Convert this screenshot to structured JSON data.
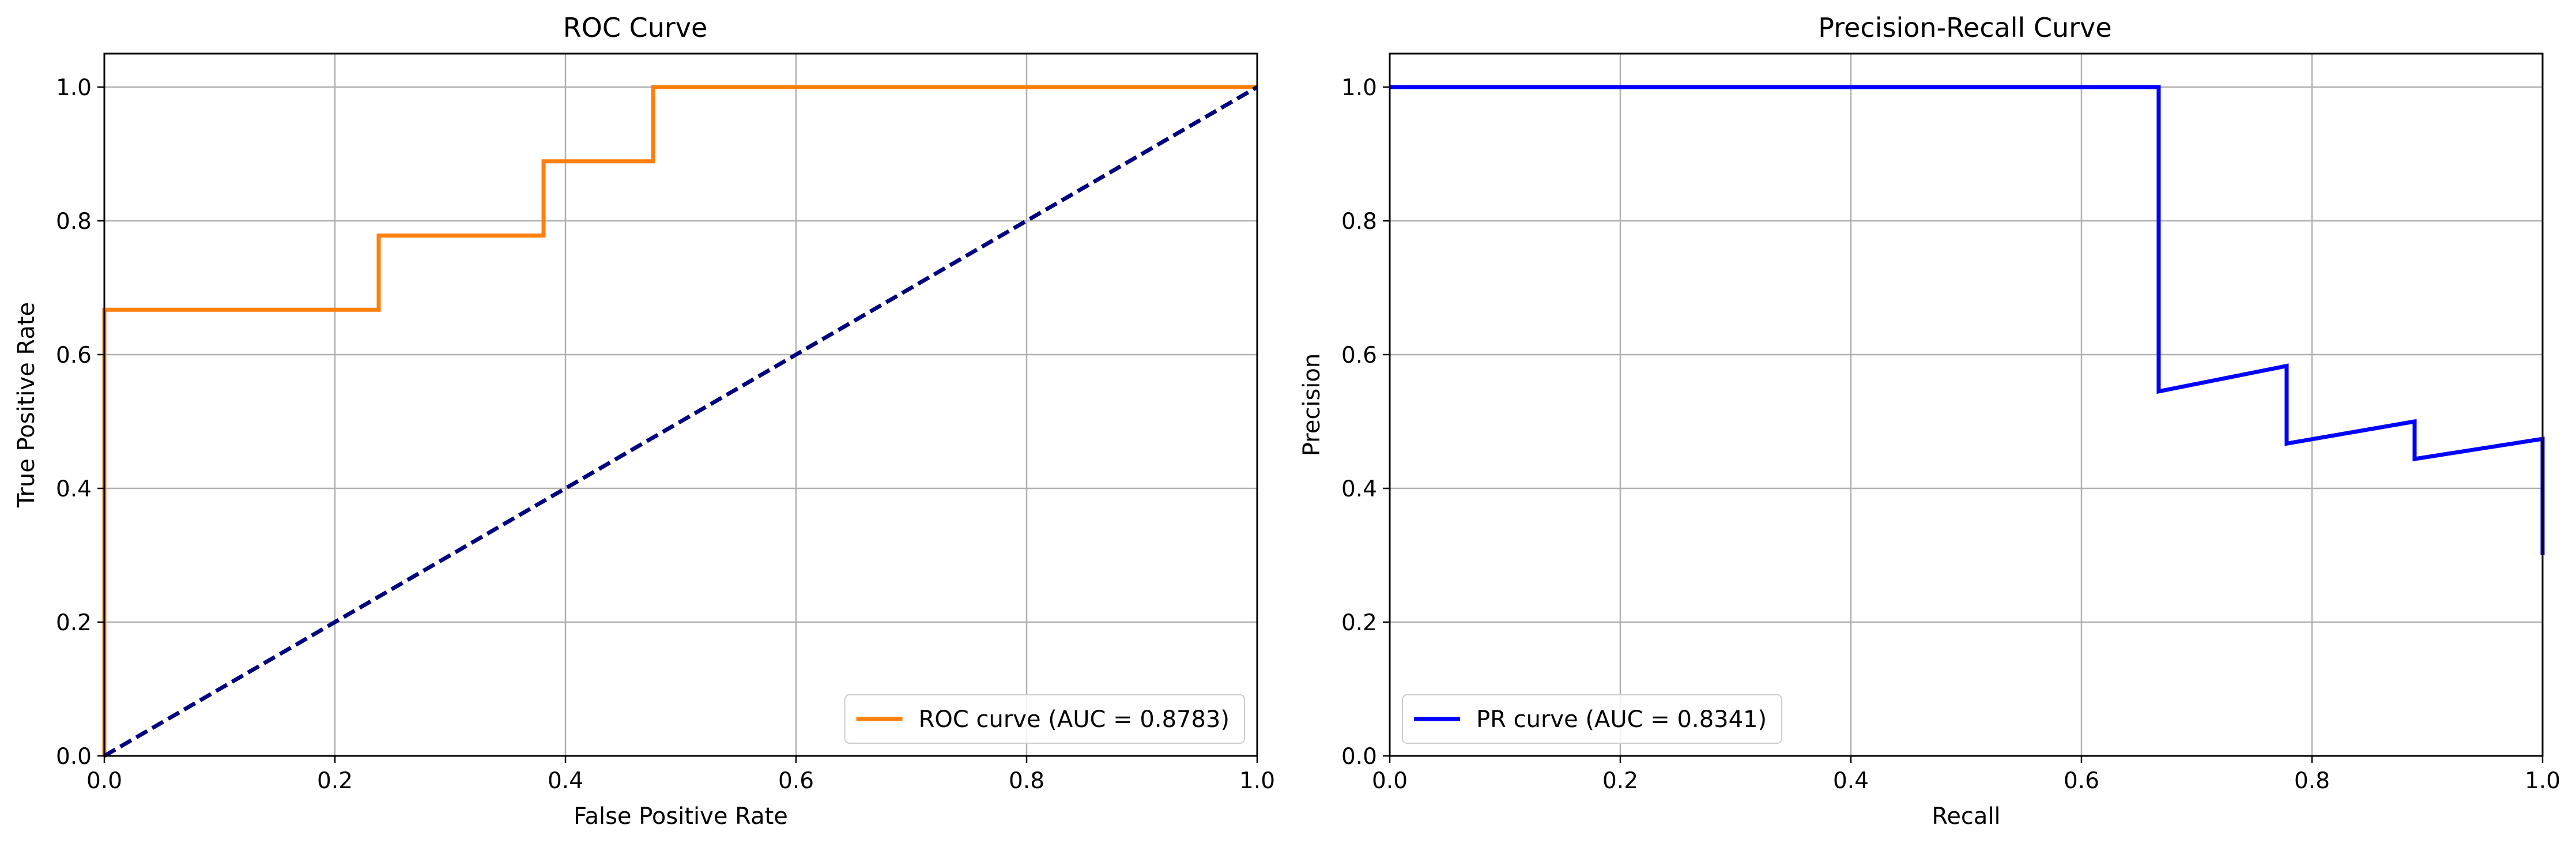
{
  "chart_data": [
    {
      "type": "line",
      "title": "ROC Curve",
      "xlabel": "False Positive Rate",
      "ylabel": "True Positive Rate",
      "xlim": [
        0,
        1
      ],
      "ylim": [
        0,
        1.05
      ],
      "xticks": [
        "0.0",
        "0.2",
        "0.4",
        "0.6",
        "0.8",
        "1.0"
      ],
      "yticks": [
        "0.0",
        "0.2",
        "0.4",
        "0.6",
        "0.8",
        "1.0"
      ],
      "grid": true,
      "legend_position": "lower right",
      "series": [
        {
          "name": "ROC curve (AUC = 0.8783)",
          "color": "#ff7f0e",
          "style": "solid",
          "x": [
            0,
            0,
            0.238,
            0.238,
            0.381,
            0.381,
            0.476,
            0.476,
            1.0
          ],
          "y": [
            0,
            0.667,
            0.667,
            0.778,
            0.778,
            0.889,
            0.889,
            1.0,
            1.0
          ]
        },
        {
          "color": "#000080",
          "style": "dashed",
          "x": [
            0,
            1
          ],
          "y": [
            0,
            1
          ]
        }
      ]
    },
    {
      "type": "line",
      "title": "Precision-Recall Curve",
      "xlabel": "Recall",
      "ylabel": "Precision",
      "xlim": [
        0,
        1
      ],
      "ylim": [
        0,
        1.05
      ],
      "xticks": [
        "0.0",
        "0.2",
        "0.4",
        "0.6",
        "0.8",
        "1.0"
      ],
      "yticks": [
        "0.0",
        "0.2",
        "0.4",
        "0.6",
        "0.8",
        "1.0"
      ],
      "grid": true,
      "legend_position": "lower left",
      "series": [
        {
          "name": "PR curve (AUC = 0.8341)",
          "color": "#0000ff",
          "style": "solid",
          "x": [
            0,
            0.667,
            0.667,
            0.778,
            0.778,
            0.889,
            0.889,
            1.0,
            1.0
          ],
          "y": [
            1.0,
            1.0,
            0.545,
            0.583,
            0.467,
            0.5,
            0.444,
            0.474,
            0.3
          ]
        }
      ]
    }
  ]
}
